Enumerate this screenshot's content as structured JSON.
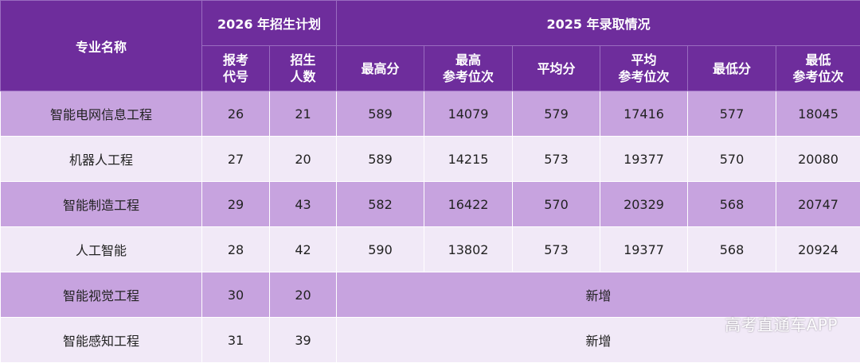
{
  "header": {
    "major": "专业名称",
    "plan": "2026 年招生计划",
    "admission": "2025 年录取情况",
    "columns": [
      [
        "报考",
        "代号"
      ],
      [
        "招生",
        "人数"
      ],
      [
        "最高分"
      ],
      [
        "最高",
        "参考位次"
      ],
      [
        "平均分"
      ],
      [
        "平均",
        "参考位次"
      ],
      [
        "最低分"
      ],
      [
        "最低",
        "参考位次"
      ]
    ]
  },
  "rows": [
    [
      "智能电网信息工程",
      26,
      21,
      589,
      14079,
      579,
      17416,
      577,
      18045
    ],
    [
      "机器人工程",
      27,
      20,
      589,
      14215,
      573,
      19377,
      570,
      20080
    ],
    [
      "智能制造工程",
      29,
      43,
      582,
      16422,
      570,
      20329,
      568,
      20747
    ],
    [
      "人工智能",
      28,
      42,
      590,
      13802,
      573,
      19377,
      568,
      20924
    ],
    [
      "智能视觉工程",
      30,
      20,
      "新增"
    ],
    [
      "智能感知工程",
      31,
      39,
      "新增"
    ]
  ],
  "watermark": "高考直通车APP"
}
